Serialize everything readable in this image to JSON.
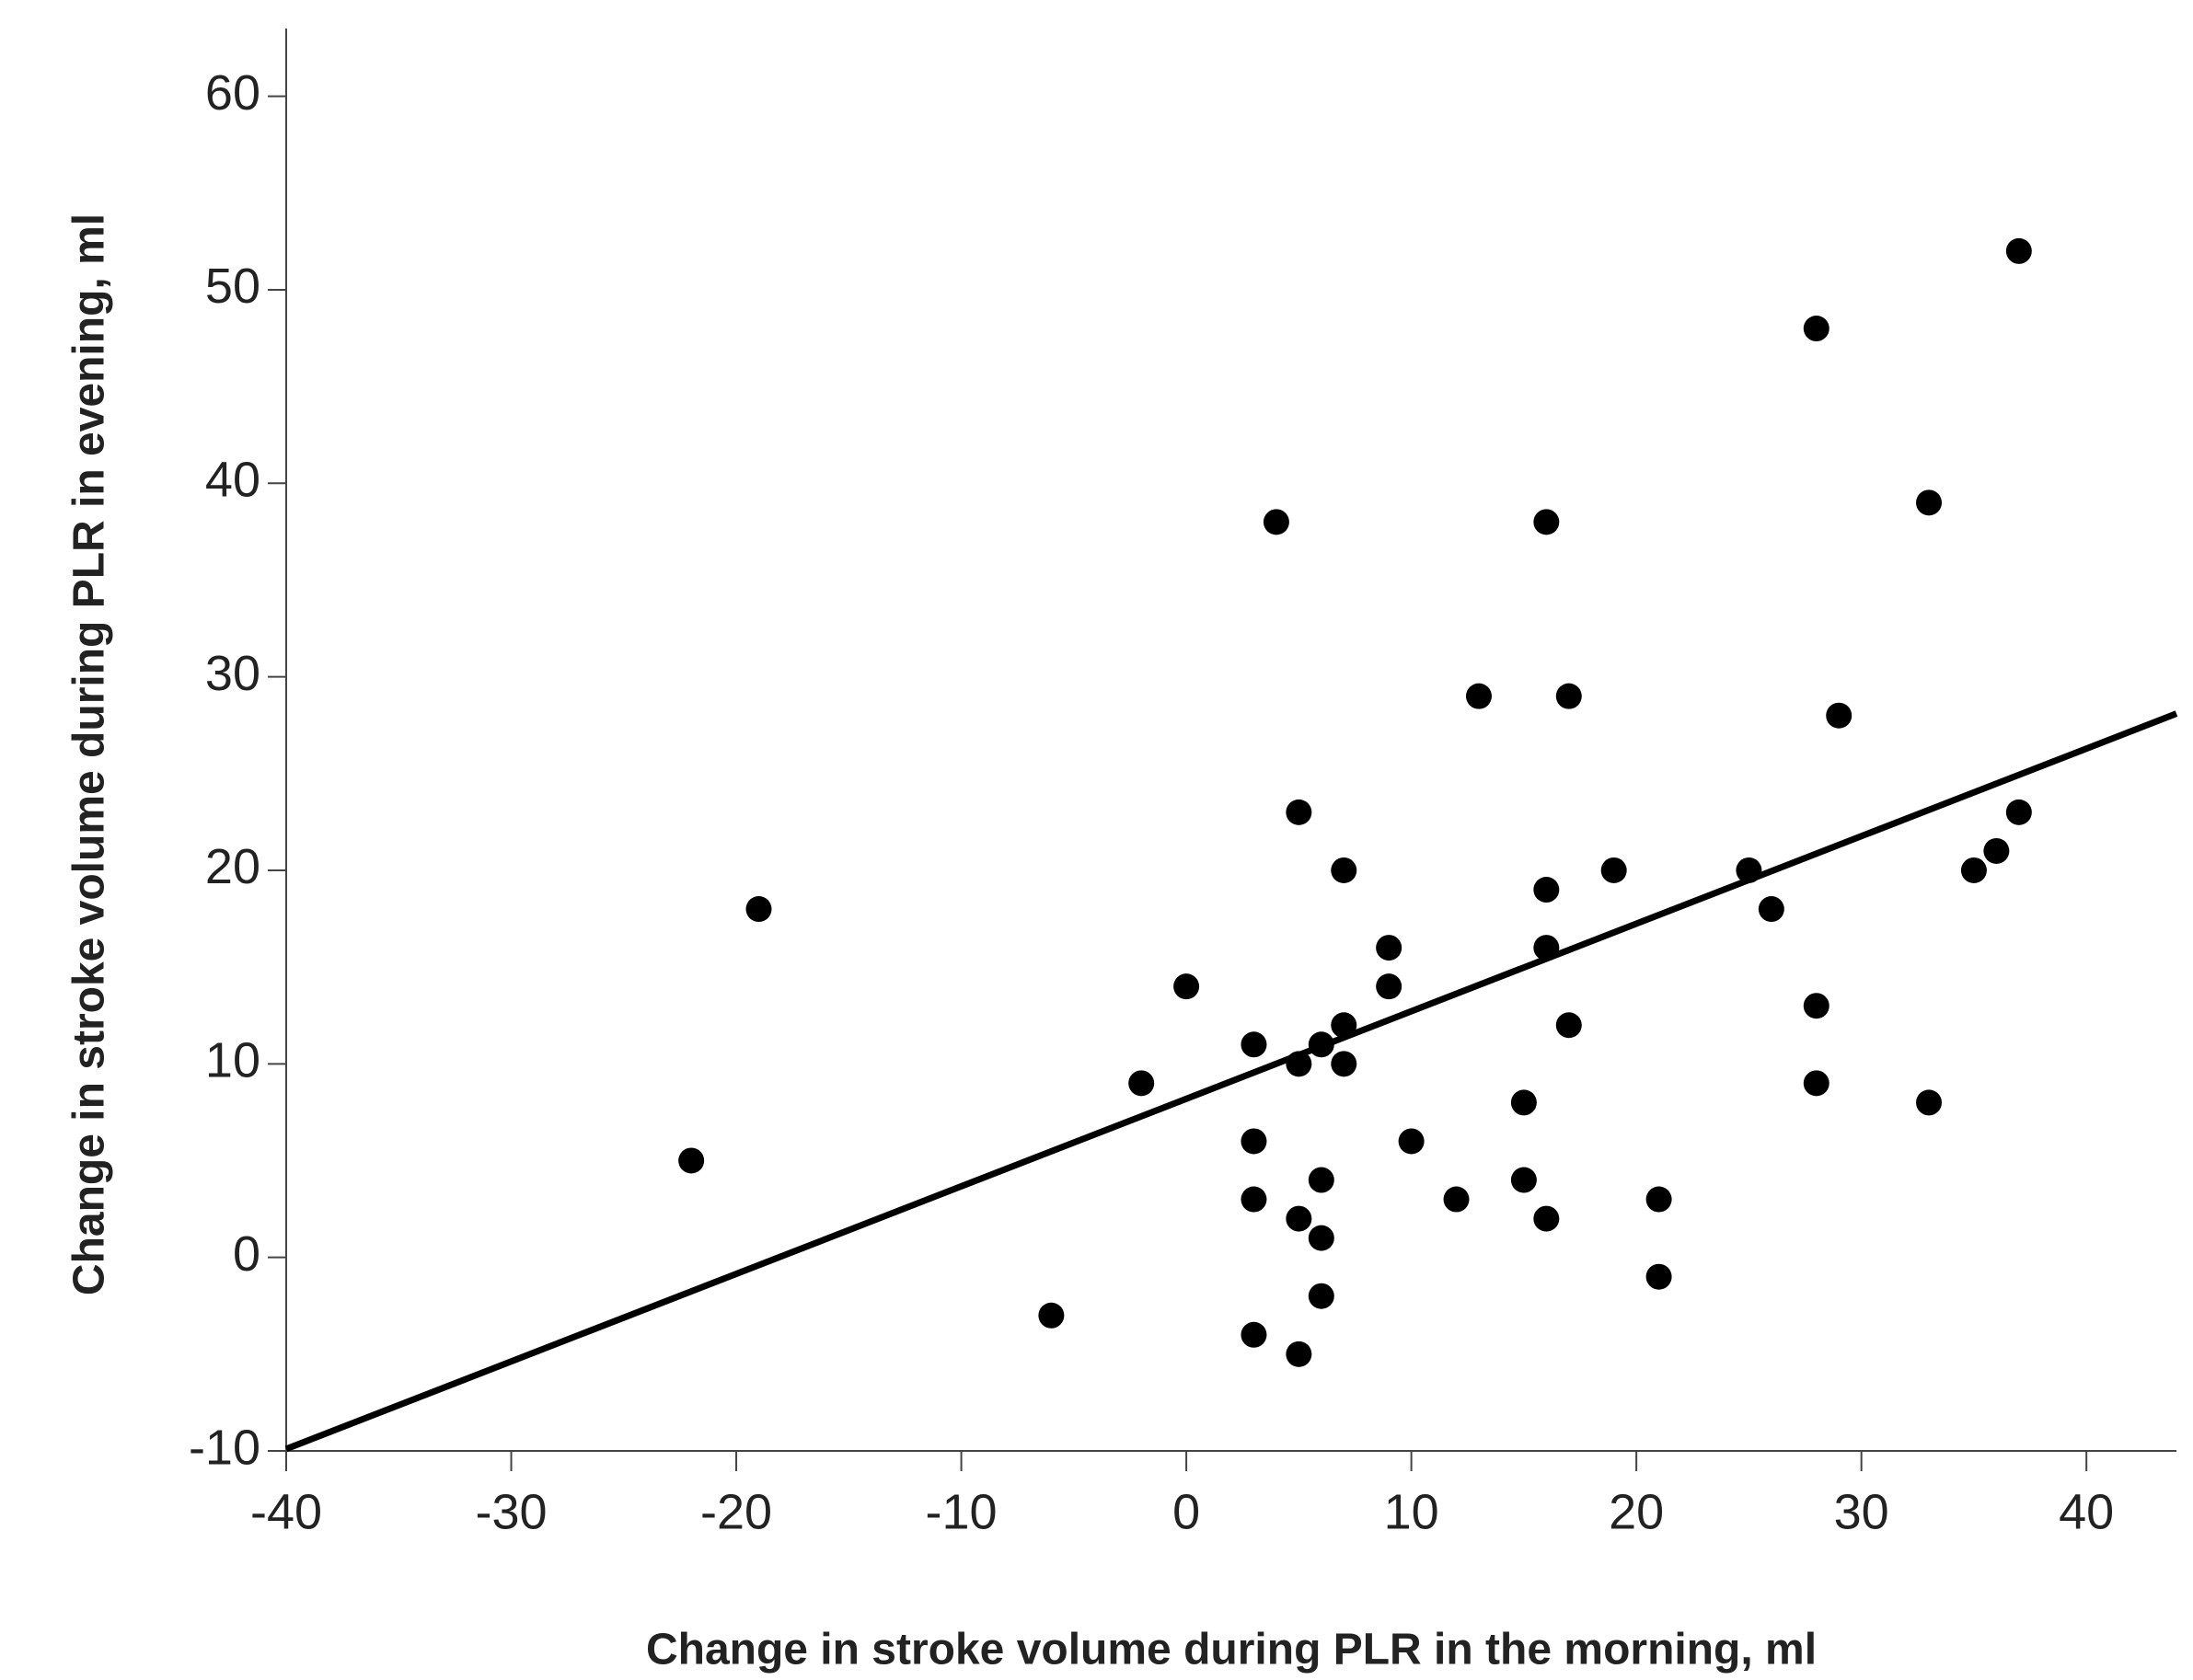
{
  "chart_data": {
    "type": "scatter",
    "x_label": "Change in stroke volume during PLR in the morning, ml",
    "y_label": "Change in stroke volume during PLR in evening, ml",
    "x": [
      37,
      28,
      33,
      4,
      16,
      13,
      17,
      29,
      5,
      37,
      36,
      35,
      7,
      19,
      25,
      -19,
      26,
      16,
      9,
      16,
      0,
      9,
      7,
      17,
      28,
      3,
      6,
      5,
      7,
      -2,
      28,
      15,
      33,
      3,
      10,
      -22,
      6,
      15,
      3,
      12,
      21,
      5,
      16,
      6,
      21,
      6,
      -6,
      3,
      5
    ],
    "y": [
      52,
      48,
      39,
      38,
      38,
      29,
      29,
      28,
      23,
      23,
      21,
      20,
      20,
      20,
      20,
      18,
      18,
      19,
      16,
      16,
      14,
      14,
      12,
      12,
      13,
      11,
      11,
      10,
      10,
      9,
      9,
      8,
      8,
      6,
      6,
      5,
      4,
      4,
      3,
      3,
      3,
      2,
      2,
      1,
      -1,
      -2,
      -3,
      -4,
      -5
    ],
    "color": "#000000",
    "fit_line": {
      "x": [
        -40,
        44
      ],
      "y": [
        -9.9,
        28.1
      ]
    },
    "xlim": [
      -40,
      44
    ],
    "ylim": [
      -10,
      63.5
    ],
    "xticks": [
      -40,
      -30,
      -20,
      -10,
      0,
      10,
      20,
      30,
      40
    ],
    "yticks": [
      -10,
      0,
      10,
      20,
      30,
      40,
      50,
      60
    ]
  }
}
